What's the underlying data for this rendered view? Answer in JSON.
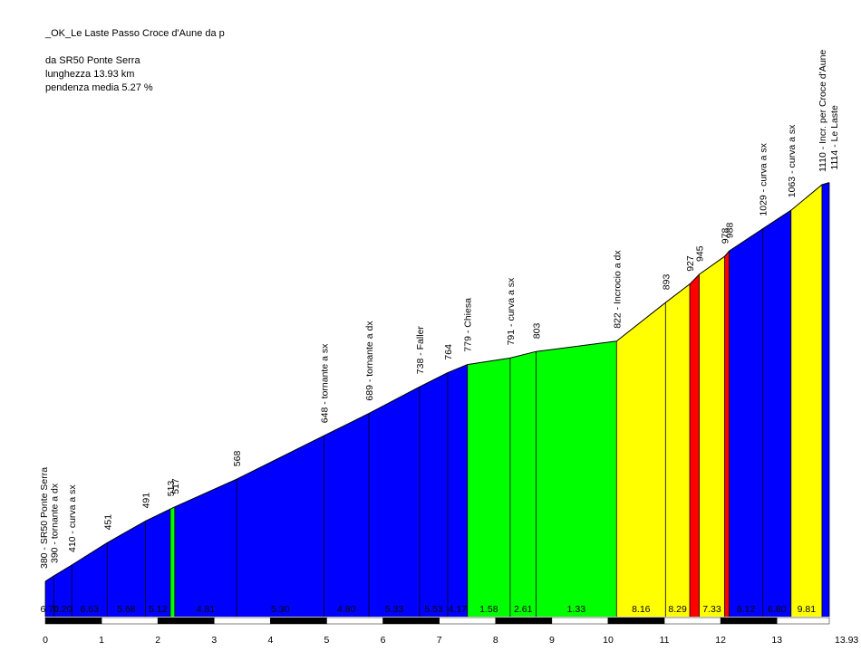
{
  "info": {
    "title": "_OK_Le Laste Passo Croce d'Aune da p",
    "start": "da SR50 Ponte Serra",
    "length": "lunghezza 13.93 km",
    "grade": "pendenza media 5.27 %"
  },
  "chart_data": {
    "type": "area",
    "title": "_OK_Le Laste Passo Croce d'Aune da p",
    "xlabel": "",
    "ylabel": "",
    "xlim": [
      0,
      13.93
    ],
    "ylim": [
      315,
      1140
    ],
    "x_ticks": [
      "0",
      "1",
      "2",
      "3",
      "4",
      "5",
      "6",
      "7",
      "8",
      "9",
      "10",
      "11",
      "12",
      "13",
      "13.93"
    ],
    "colors": {
      "blue": "#0000ff",
      "green": "#00ff00",
      "yellow": "#ffff00",
      "red": "#ff0000"
    },
    "points": [
      {
        "km": 0.0,
        "alt": 380,
        "label": "380 - SR50 Ponte Serra"
      },
      {
        "km": 0.15,
        "alt": 390,
        "label": "390 - tornante a dx"
      },
      {
        "km": 0.47,
        "alt": 410,
        "label": "410 - curva a sx"
      },
      {
        "km": 1.1,
        "alt": 451,
        "label": "451"
      },
      {
        "km": 1.78,
        "alt": 491,
        "label": "491"
      },
      {
        "km": 2.22,
        "alt": 513,
        "label": "513"
      },
      {
        "km": 2.3,
        "alt": 517,
        "label": "517"
      },
      {
        "km": 3.4,
        "alt": 568,
        "label": "568"
      },
      {
        "km": 4.95,
        "alt": 648,
        "label": "648 - tornante a sx"
      },
      {
        "km": 5.75,
        "alt": 689,
        "label": "689 - tornante a dx"
      },
      {
        "km": 6.65,
        "alt": 738,
        "label": "738 - Faller"
      },
      {
        "km": 7.15,
        "alt": 764,
        "label": "764"
      },
      {
        "km": 7.5,
        "alt": 779,
        "label": "779 - Chiesa"
      },
      {
        "km": 8.26,
        "alt": 791,
        "label": "791 - curva a sx"
      },
      {
        "km": 8.72,
        "alt": 803,
        "label": "803"
      },
      {
        "km": 10.15,
        "alt": 822,
        "label": "822 - Incrocio a dx"
      },
      {
        "km": 11.02,
        "alt": 893,
        "label": "893"
      },
      {
        "km": 11.45,
        "alt": 927,
        "label": "927"
      },
      {
        "km": 11.62,
        "alt": 945,
        "label": "945"
      },
      {
        "km": 12.07,
        "alt": 978,
        "label": "978"
      },
      {
        "km": 12.15,
        "alt": 988,
        "label": "988"
      },
      {
        "km": 12.75,
        "alt": 1029,
        "label": "1029 - curva a sx"
      },
      {
        "km": 13.25,
        "alt": 1063,
        "label": "1063 - curva a sx"
      },
      {
        "km": 13.8,
        "alt": 1110,
        "label": "1110 - Incr. per Croce d'Aune"
      },
      {
        "km": 13.93,
        "alt": 1114,
        "label": "1114 - Le Laste"
      }
    ],
    "segments": [
      {
        "grade": "6.70",
        "color": "blue"
      },
      {
        "grade": "6.20",
        "color": "blue"
      },
      {
        "grade": "6.63",
        "color": "blue"
      },
      {
        "grade": "5.68",
        "color": "blue"
      },
      {
        "grade": "5.12",
        "color": "blue"
      },
      {
        "grade": "",
        "color": "green"
      },
      {
        "grade": "4.81",
        "color": "blue"
      },
      {
        "grade": "5.30",
        "color": "blue"
      },
      {
        "grade": "4.80",
        "color": "blue"
      },
      {
        "grade": "5.33",
        "color": "blue"
      },
      {
        "grade": "5.53",
        "color": "blue"
      },
      {
        "grade": "4.17",
        "color": "blue"
      },
      {
        "grade": "1.58",
        "color": "green"
      },
      {
        "grade": "2.61",
        "color": "green"
      },
      {
        "grade": "1.33",
        "color": "green"
      },
      {
        "grade": "8.16",
        "color": "yellow"
      },
      {
        "grade": "8.29",
        "color": "yellow"
      },
      {
        "grade": "",
        "color": "red"
      },
      {
        "grade": "7.33",
        "color": "yellow"
      },
      {
        "grade": "",
        "color": "red"
      },
      {
        "grade": "6.12",
        "color": "blue"
      },
      {
        "grade": "6.80",
        "color": "blue"
      },
      {
        "grade": "9.81",
        "color": "yellow"
      },
      {
        "grade": "",
        "color": "blue"
      }
    ]
  }
}
